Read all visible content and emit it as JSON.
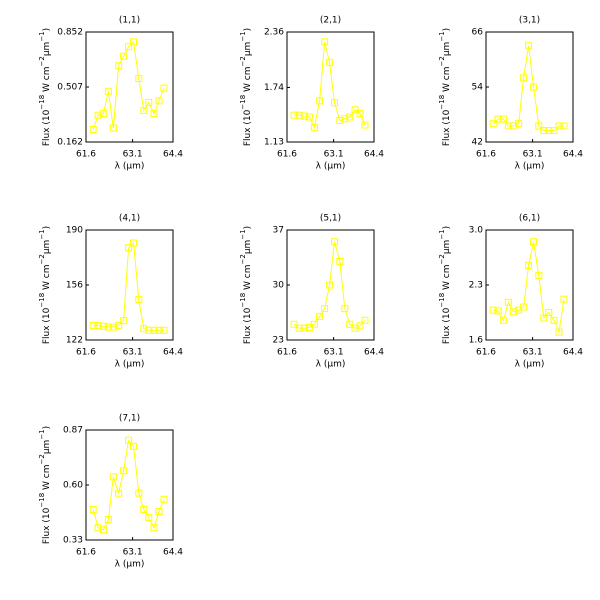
{
  "chart_data": [
    {
      "type": "line",
      "title": "(1,1)",
      "xlabel": "λ (μm)",
      "ylabel": [
        "Flux (10",
        "−18",
        " W cm",
        "−2",
        "μm",
        "−1",
        ")"
      ],
      "color": "#ffff00",
      "marker": "square",
      "x": [
        61.83,
        61.99,
        62.16,
        62.32,
        62.48,
        62.65,
        62.81,
        62.97,
        63.13,
        63.3,
        63.46,
        63.62,
        63.79,
        63.95,
        64.11
      ],
      "values": [
        0.24,
        0.33,
        0.34,
        0.48,
        0.25,
        0.64,
        0.7,
        0.76,
        0.79,
        0.56,
        0.36,
        0.41,
        0.34,
        0.42,
        0.5
      ],
      "xlim": [
        61.6,
        64.4
      ],
      "xticks": [
        61.6,
        63.1,
        64.4
      ],
      "ylim": [
        0.162,
        0.852
      ],
      "yticks": [
        0.162,
        0.507,
        0.852
      ]
    },
    {
      "type": "line",
      "title": "(2,1)",
      "xlabel": "λ (μm)",
      "ylabel": [
        "Flux (10",
        "−18",
        " W cm",
        "−2",
        "μm",
        "−1",
        ")"
      ],
      "color": "#ffff00",
      "marker": "square",
      "x": [
        61.83,
        61.99,
        62.16,
        62.32,
        62.48,
        62.65,
        62.81,
        62.97,
        63.13,
        63.3,
        63.46,
        63.62,
        63.79,
        63.95,
        64.11
      ],
      "values": [
        1.43,
        1.43,
        1.42,
        1.41,
        1.29,
        1.59,
        2.25,
        2.02,
        1.57,
        1.37,
        1.39,
        1.41,
        1.49,
        1.45,
        1.32
      ],
      "xlim": [
        61.6,
        64.4
      ],
      "xticks": [
        61.6,
        63.1,
        64.4
      ],
      "ylim": [
        1.13,
        2.36
      ],
      "yticks": [
        1.13,
        1.74,
        2.36
      ]
    },
    {
      "type": "line",
      "title": "(3,1)",
      "xlabel": "λ (μm)",
      "ylabel": [
        "Flux (10",
        "−18",
        " W cm",
        "−2",
        "μm",
        "−1",
        ")"
      ],
      "color": "#ffff00",
      "marker": "square",
      "x": [
        61.83,
        61.99,
        62.16,
        62.32,
        62.48,
        62.65,
        62.81,
        62.97,
        63.13,
        63.3,
        63.46,
        63.62,
        63.79,
        63.95,
        64.11
      ],
      "values": [
        46,
        47,
        47,
        45.5,
        45.5,
        46,
        56,
        63,
        54,
        45.5,
        44.5,
        44.5,
        44.5,
        45.5,
        45.5
      ],
      "xlim": [
        61.6,
        64.4
      ],
      "xticks": [
        61.6,
        63.1,
        64.4
      ],
      "ylim": [
        42,
        66
      ],
      "yticks": [
        42,
        54,
        66
      ]
    },
    {
      "type": "line",
      "title": "(4,1)",
      "xlabel": "λ (μm)",
      "ylabel": [
        "Flux (10",
        "−18",
        " W cm",
        "−2",
        "μm",
        "−1",
        ")"
      ],
      "color": "#ffff00",
      "marker": "square",
      "x": [
        61.83,
        61.99,
        62.16,
        62.32,
        62.48,
        62.65,
        62.81,
        62.97,
        63.13,
        63.3,
        63.46,
        63.62,
        63.79,
        63.95,
        64.11
      ],
      "values": [
        131,
        131,
        130.5,
        130,
        130,
        131,
        134,
        179,
        182,
        147,
        129,
        128,
        128,
        128,
        128
      ],
      "xlim": [
        61.6,
        64.4
      ],
      "xticks": [
        61.6,
        63.1,
        64.4
      ],
      "ylim": [
        122,
        190
      ],
      "yticks": [
        122,
        156,
        190
      ]
    },
    {
      "type": "line",
      "title": "(5,1)",
      "xlabel": "λ (μm)",
      "ylabel": [
        "Flux (10",
        "−18",
        " W cm",
        "−2",
        "μm",
        "−1",
        ")"
      ],
      "color": "#ffff00",
      "marker": "square",
      "x": [
        61.83,
        61.99,
        62.16,
        62.32,
        62.48,
        62.65,
        62.81,
        62.97,
        63.13,
        63.3,
        63.46,
        63.62,
        63.79,
        63.95,
        64.11
      ],
      "values": [
        25,
        24.5,
        24.5,
        24.6,
        25,
        26,
        27,
        30,
        35.5,
        33,
        27,
        25,
        24.5,
        24.8,
        25.5
      ],
      "xlim": [
        61.6,
        64.4
      ],
      "xticks": [
        61.6,
        63.1,
        64.4
      ],
      "ylim": [
        23,
        37
      ],
      "yticks": [
        23,
        30,
        37
      ]
    },
    {
      "type": "line",
      "title": "(6,1)",
      "xlabel": "λ (μm)",
      "ylabel": [
        "Flux (10",
        "−18",
        " W cm",
        "−2",
        "μm",
        "−1",
        ")"
      ],
      "color": "#ffff00",
      "marker": "square",
      "x": [
        61.83,
        61.99,
        62.16,
        62.32,
        62.48,
        62.65,
        62.81,
        62.97,
        63.13,
        63.3,
        63.46,
        63.62,
        63.79,
        63.95,
        64.11
      ],
      "values": [
        1.98,
        1.97,
        1.85,
        2.08,
        1.96,
        1.98,
        2.02,
        2.55,
        2.85,
        2.42,
        1.88,
        1.95,
        1.85,
        1.7,
        2.12
      ],
      "xlim": [
        61.6,
        64.4
      ],
      "xticks": [
        61.6,
        63.1,
        64.4
      ],
      "ylim": [
        1.6,
        3.0
      ],
      "yticks": [
        1.6,
        2.3,
        {
          "value": 3.0,
          "label": "3.0"
        }
      ]
    },
    {
      "type": "line",
      "title": "(7,1)",
      "xlabel": "λ (μm)",
      "ylabel": [
        "Flux (10",
        "−18",
        " W cm",
        "−2",
        "μm",
        "−1",
        ")"
      ],
      "color": "#ffff00",
      "marker": "square",
      "x": [
        61.83,
        61.99,
        62.16,
        62.32,
        62.48,
        62.65,
        62.81,
        62.97,
        63.13,
        63.3,
        63.46,
        63.62,
        63.79,
        63.95,
        64.11
      ],
      "values": [
        0.48,
        0.39,
        0.38,
        0.43,
        0.64,
        0.56,
        0.67,
        0.82,
        0.79,
        0.56,
        0.48,
        0.44,
        0.39,
        0.47,
        0.53
      ],
      "xlim": [
        61.6,
        64.4
      ],
      "xticks": [
        61.6,
        63.1,
        64.4
      ],
      "ylim": [
        0.33,
        0.87
      ],
      "yticks": [
        0.33,
        {
          "value": 0.6,
          "label": "0.60"
        },
        0.87
      ]
    }
  ]
}
